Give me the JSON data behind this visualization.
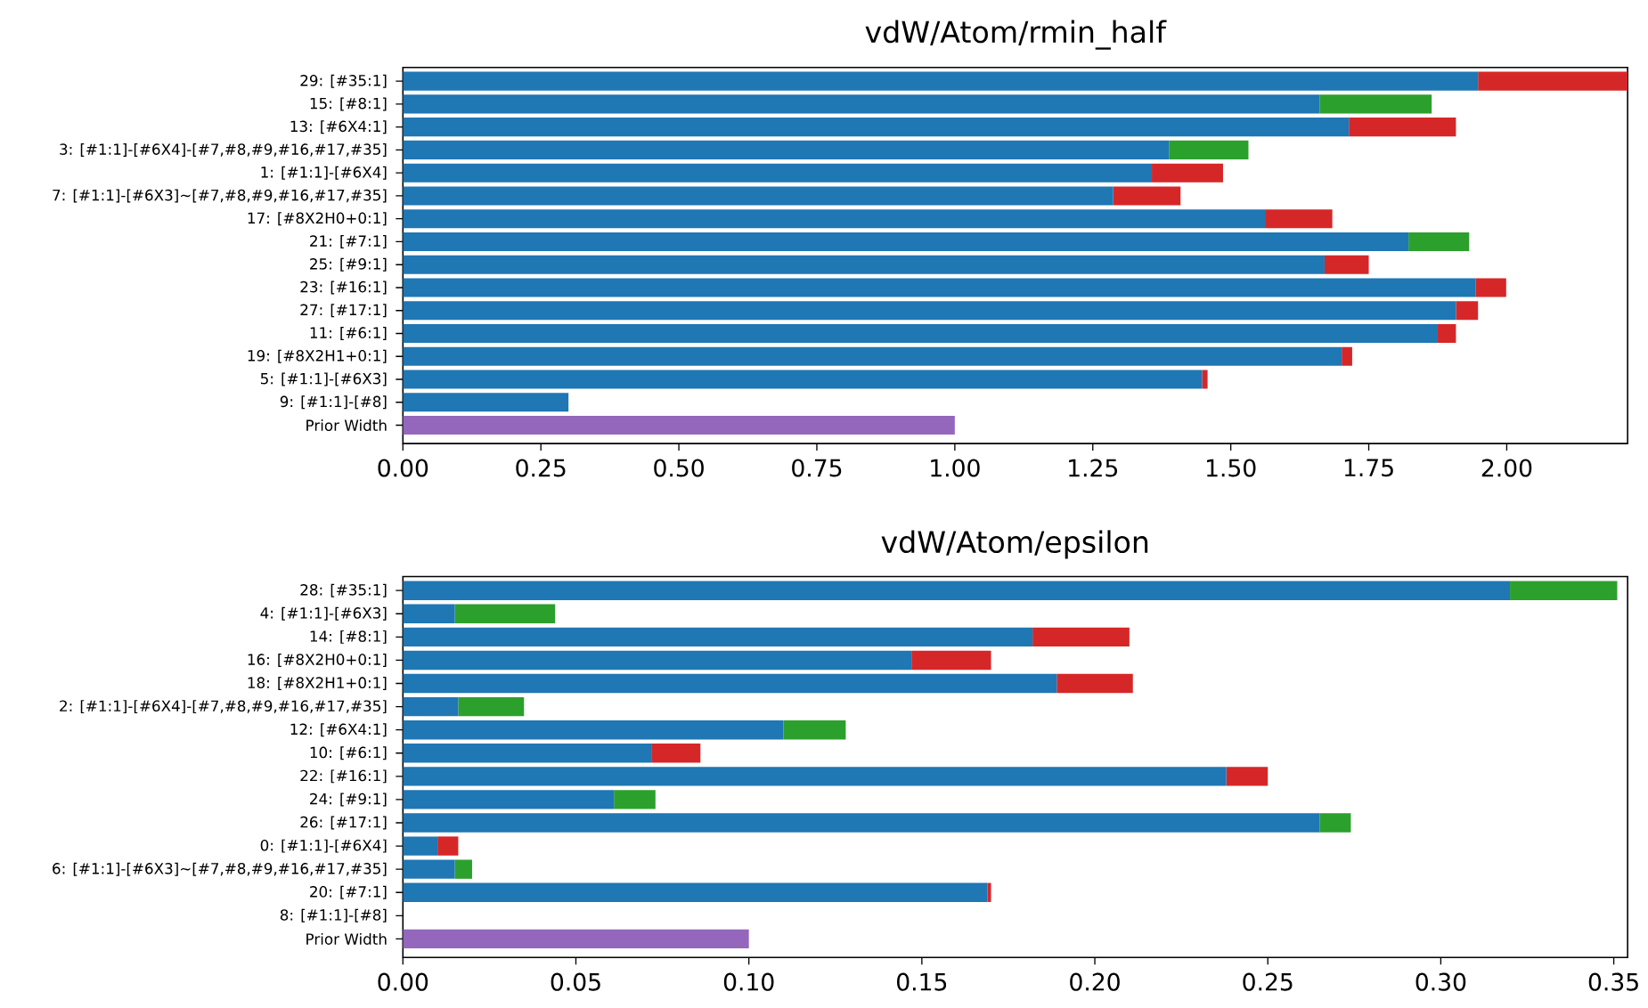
{
  "chart_data": [
    {
      "type": "bar",
      "title": "vdW/Atom/rmin_half",
      "orientation": "horizontal",
      "stacked": true,
      "categories": [
        "29: [#35:1]",
        "15: [#8:1]",
        "13: [#6X4:1]",
        "3: [#1:1]-[#6X4]-[#7,#8,#9,#16,#17,#35]",
        "1: [#1:1]-[#6X4]",
        "7: [#1:1]-[#6X3]~[#7,#8,#9,#16,#17,#35]",
        "17: [#8X2H0+0:1]",
        "21: [#7:1]",
        "25: [#9:1]",
        "23: [#16:1]",
        "27: [#17:1]",
        "11: [#6:1]",
        "19: [#8X2H1+0:1]",
        "5: [#1:1]-[#6X3]",
        "9: [#1:1]-[#8]",
        "Prior Width"
      ],
      "series": [
        {
          "color": "#1f77b4",
          "values": [
            1.948,
            1.661,
            1.714,
            1.388,
            1.357,
            1.287,
            1.562,
            1.822,
            1.67,
            1.944,
            1.908,
            1.875,
            1.701,
            1.448,
            0.3,
            null
          ]
        },
        {
          "color": "#d62728",
          "values": [
            0.271,
            null,
            0.194,
            null,
            0.129,
            0.122,
            0.122,
            null,
            0.08,
            0.055,
            0.04,
            0.033,
            0.019,
            0.01,
            null,
            null
          ]
        },
        {
          "color": "#2ca02c",
          "values": [
            null,
            0.203,
            null,
            0.144,
            null,
            null,
            null,
            0.11,
            null,
            null,
            null,
            null,
            null,
            null,
            null,
            null
          ]
        },
        {
          "color": "#9467bd",
          "values": [
            null,
            null,
            null,
            null,
            null,
            null,
            null,
            null,
            null,
            null,
            null,
            null,
            null,
            null,
            null,
            1.0
          ]
        }
      ],
      "xlim": [
        0,
        2.219
      ],
      "xticks": [
        {
          "value": 0,
          "label": "0.00"
        },
        {
          "value": 0.25,
          "label": "0.25"
        },
        {
          "value": 0.5,
          "label": "0.50"
        },
        {
          "value": 0.75,
          "label": "0.75"
        },
        {
          "value": 1,
          "label": "1.00"
        },
        {
          "value": 1.25,
          "label": "1.25"
        },
        {
          "value": 1.5,
          "label": "1.50"
        },
        {
          "value": 1.75,
          "label": "1.75"
        },
        {
          "value": 2,
          "label": "2.00"
        }
      ]
    },
    {
      "type": "bar",
      "title": "vdW/Atom/epsilon",
      "orientation": "horizontal",
      "stacked": true,
      "categories": [
        "28: [#35:1]",
        "4: [#1:1]-[#6X3]",
        "14: [#8:1]",
        "16: [#8X2H0+0:1]",
        "18: [#8X2H1+0:1]",
        "2: [#1:1]-[#6X4]-[#7,#8,#9,#16,#17,#35]",
        "12: [#6X4:1]",
        "10: [#6:1]",
        "22: [#16:1]",
        "24: [#9:1]",
        "26: [#17:1]",
        "0: [#1:1]-[#6X4]",
        "6: [#1:1]-[#6X3]~[#7,#8,#9,#16,#17,#35]",
        "20: [#7:1]",
        "8: [#1:1]-[#8]",
        "Prior Width"
      ],
      "series": [
        {
          "color": "#1f77b4",
          "values": [
            0.32,
            0.015,
            0.182,
            0.147,
            0.189,
            0.016,
            0.11,
            0.072,
            0.238,
            0.061,
            0.265,
            0.01,
            0.015,
            0.169,
            0,
            null
          ]
        },
        {
          "color": "#d62728",
          "values": [
            null,
            null,
            0.028,
            0.023,
            0.022,
            null,
            null,
            0.014,
            0.012,
            null,
            null,
            0.006,
            null,
            0.001,
            null,
            null
          ]
        },
        {
          "color": "#2ca02c",
          "values": [
            0.031,
            0.029,
            null,
            null,
            null,
            0.019,
            0.018,
            null,
            null,
            0.012,
            0.009,
            null,
            0.005,
            null,
            null,
            null
          ]
        },
        {
          "color": "#9467bd",
          "values": [
            null,
            null,
            null,
            null,
            null,
            null,
            null,
            null,
            null,
            null,
            null,
            null,
            null,
            null,
            null,
            0.1
          ]
        }
      ],
      "xlim": [
        0,
        0.354
      ],
      "xticks": [
        {
          "value": 0,
          "label": "0.00"
        },
        {
          "value": 0.05,
          "label": "0.05"
        },
        {
          "value": 0.1,
          "label": "0.10"
        },
        {
          "value": 0.15,
          "label": "0.15"
        },
        {
          "value": 0.2,
          "label": "0.20"
        },
        {
          "value": 0.25,
          "label": "0.25"
        },
        {
          "value": 0.3,
          "label": "0.30"
        },
        {
          "value": 0.35,
          "label": "0.35"
        }
      ]
    }
  ]
}
